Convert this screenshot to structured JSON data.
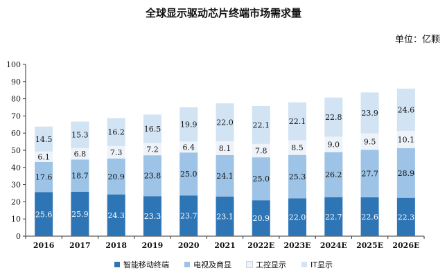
{
  "chart_data": {
    "type": "bar",
    "stacked": true,
    "title": "全球显示驱动芯片终端市场需求量",
    "unit_label": "单位：亿颗",
    "categories": [
      "2016",
      "2017",
      "2018",
      "2019",
      "2020",
      "2021",
      "2022E",
      "2023E",
      "2024E",
      "2025E",
      "2026E"
    ],
    "ylim": [
      0,
      100
    ],
    "yticks": [
      0,
      10,
      20,
      30,
      40,
      50,
      60,
      70,
      80,
      90,
      100
    ],
    "series": [
      {
        "name": "智能移动终端",
        "color": "#2e75b6",
        "label_color": "#ffffff",
        "values": [
          25.6,
          25.9,
          24.3,
          23.3,
          23.7,
          23.1,
          20.9,
          22.0,
          22.7,
          22.6,
          22.3
        ]
      },
      {
        "name": "电视及商显",
        "color": "#9dc3e6",
        "label_color": "#111111",
        "values": [
          17.6,
          18.7,
          20.9,
          23.8,
          25.0,
          24.1,
          25.0,
          25.3,
          26.2,
          27.7,
          28.9
        ]
      },
      {
        "name": "工控显示",
        "color": "#eef3fa",
        "label_color": "#111111",
        "values": [
          6.1,
          6.8,
          7.3,
          7.2,
          6.4,
          8.1,
          7.8,
          8.5,
          9.0,
          9.5,
          10.1
        ]
      },
      {
        "name": "IT显示",
        "color": "#d2e3f3",
        "label_color": "#111111",
        "values": [
          14.5,
          15.3,
          16.2,
          16.5,
          19.9,
          22.0,
          22.1,
          22.1,
          22.8,
          23.9,
          24.6
        ]
      }
    ],
    "legend_position": "bottom",
    "grid": false
  }
}
